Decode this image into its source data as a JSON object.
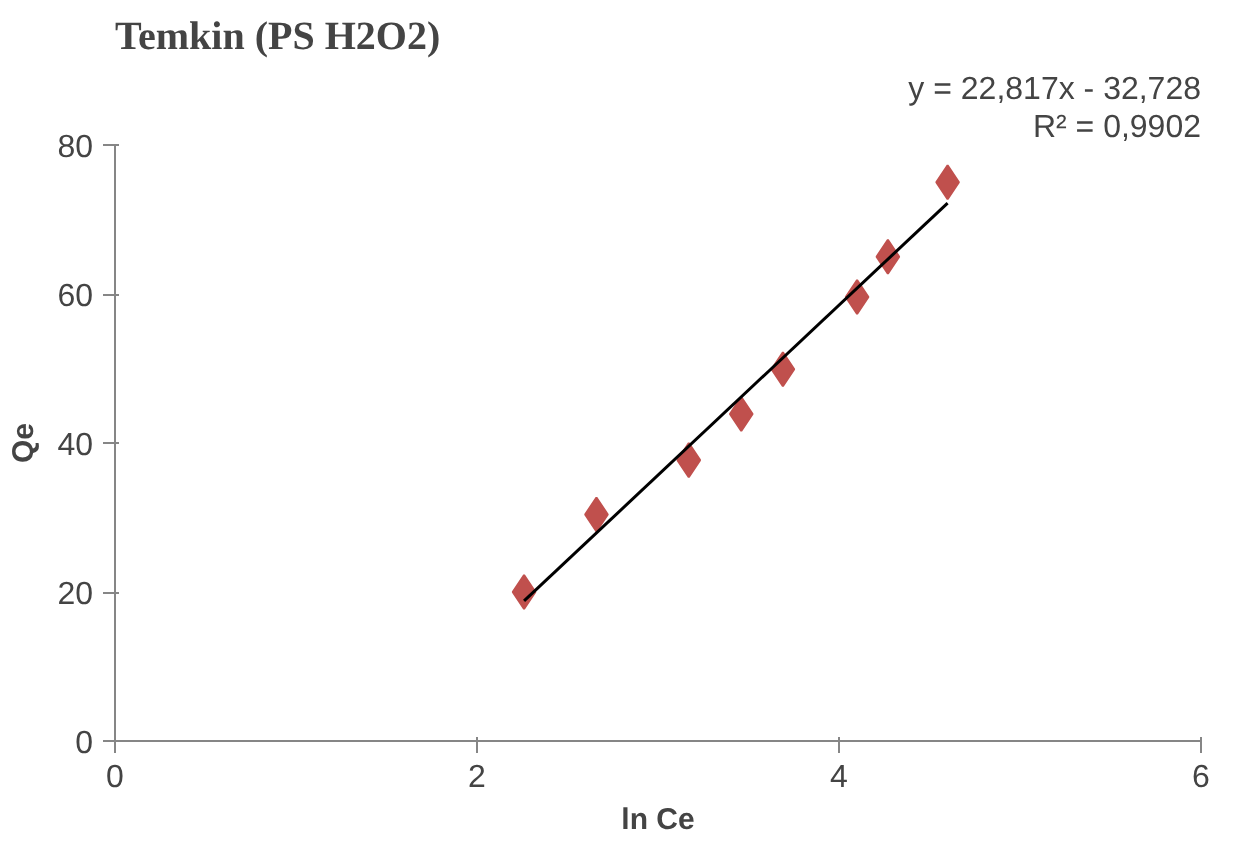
{
  "chart_data": {
    "type": "scatter",
    "title": "Temkin (PS H2O2)",
    "xlabel": "ln Ce",
    "ylabel": "Qe",
    "xlim": [
      0,
      6
    ],
    "xticks": [
      0,
      2,
      4,
      6
    ],
    "ylim": [
      0,
      80
    ],
    "yticks": [
      0,
      20,
      40,
      60,
      80
    ],
    "grid": false,
    "annotations": [
      "y = 22,817x - 32,728",
      "R² = 0,9902"
    ],
    "series": [
      {
        "color": "#c0504d",
        "marker": "diamond",
        "x": [
          2.26,
          2.66,
          3.17,
          3.46,
          3.69,
          4.1,
          4.27,
          4.6
        ],
        "values": [
          20,
          30.4,
          37.7,
          43.9,
          49.9,
          59.6,
          65,
          75
        ]
      },
      {
        "type": "line",
        "color": "#000000",
        "x": [
          2.26,
          4.6
        ],
        "values": [
          18.8,
          72.2
        ]
      }
    ]
  }
}
